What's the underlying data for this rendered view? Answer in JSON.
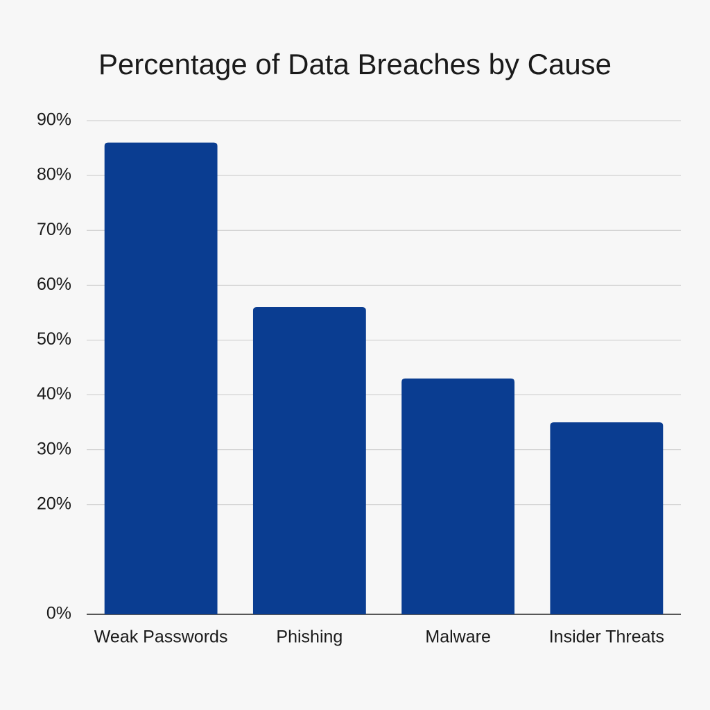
{
  "chart_data": {
    "type": "bar",
    "title": "Percentage of Data Breaches by Cause",
    "categories": [
      "Weak Passwords",
      "Phishing",
      "Malware",
      "Insider Threats"
    ],
    "values": [
      86,
      56,
      43,
      35
    ],
    "color": "#0a3d91",
    "ylim": [
      0,
      90
    ],
    "yticks": [
      {
        "value": 0,
        "label": "0%"
      },
      {
        "value": 20,
        "label": "20%"
      },
      {
        "value": 30,
        "label": "30%"
      },
      {
        "value": 40,
        "label": "40%"
      },
      {
        "value": 50,
        "label": "50%"
      },
      {
        "value": 60,
        "label": "60%"
      },
      {
        "value": 70,
        "label": "70%"
      },
      {
        "value": 80,
        "label": "80%"
      },
      {
        "value": 90,
        "label": "90%"
      }
    ],
    "grid": true
  }
}
